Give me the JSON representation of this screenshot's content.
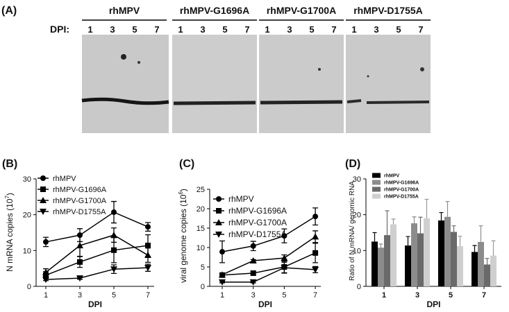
{
  "blot": {
    "label": "(A)",
    "dpi_label": "DPI:",
    "lanes": [
      {
        "name": "rhMPV",
        "days": [
          "1",
          "3",
          "5",
          "7"
        ]
      },
      {
        "name": "rhMPV-G1696A",
        "days": [
          "1",
          "3",
          "5",
          "7"
        ]
      },
      {
        "name": "rhMPV-G1700A",
        "days": [
          "1",
          "3",
          "5",
          "7"
        ]
      },
      {
        "name": "rhMPV-D1755A",
        "days": [
          "1",
          "3",
          "5",
          "7"
        ]
      }
    ]
  },
  "chart_data": [
    {
      "type": "line",
      "panel_label": "(B)",
      "ylabel": [
        "N mRNA copies (10",
        "7",
        ")"
      ],
      "xlabel": "DPI",
      "categories": [
        "1",
        "3",
        "5",
        "7"
      ],
      "ylim": [
        0,
        30
      ],
      "yticks": [
        0,
        10,
        20,
        30
      ],
      "series": [
        {
          "name": "rhMPV",
          "marker": "circle",
          "color": "#000000",
          "values": [
            12.4,
            14.3,
            20.7,
            16.6
          ],
          "errors": [
            1.3,
            1.8,
            3,
            1.2
          ]
        },
        {
          "name": "rhMPV-G1696A",
          "marker": "square",
          "color": "#000000",
          "values": [
            3.1,
            6.8,
            10.1,
            11.4
          ],
          "errors": [
            1,
            1.5,
            3.5,
            3
          ]
        },
        {
          "name": "rhMPV-G1700A",
          "marker": "triangle",
          "color": "#000000",
          "values": [
            3.9,
            11.4,
            14.3,
            8.7
          ],
          "errors": [
            1,
            3,
            2,
            2
          ]
        },
        {
          "name": "rhMPV-D1755A",
          "marker": "triangle-down",
          "color": "#000000",
          "values": [
            1.9,
            2.3,
            4.8,
            5.2
          ],
          "errors": [
            0.3,
            0.3,
            1.2,
            1
          ]
        }
      ]
    },
    {
      "type": "line",
      "panel_label": "(C)",
      "ylabel": [
        "viral genome copies (10",
        "6",
        ")"
      ],
      "xlabel": "DPI",
      "categories": [
        "1",
        "3",
        "5",
        "7"
      ],
      "ylim": [
        0,
        25
      ],
      "yticks": [
        0,
        5,
        10,
        15,
        20,
        25
      ],
      "series": [
        {
          "name": "rhMPV",
          "marker": "circle",
          "color": "#000000",
          "values": [
            8.9,
            10.4,
            13,
            18
          ],
          "errors": [
            2.8,
            1.2,
            1.8,
            2.2
          ]
        },
        {
          "name": "rhMPV-G1696A",
          "marker": "square",
          "color": "#000000",
          "values": [
            2.9,
            3.4,
            5,
            8.6
          ],
          "errors": [
            0.5,
            0.5,
            1.5,
            2.5
          ]
        },
        {
          "name": "rhMPV-G1700A",
          "marker": "triangle",
          "color": "#000000",
          "values": [
            3,
            6.6,
            7.3,
            12.8
          ],
          "errors": [
            0.3,
            0.3,
            0.8,
            1.5
          ]
        },
        {
          "name": "rhMPV-D1755A",
          "marker": "triangle-down",
          "color": "#000000",
          "values": [
            1.1,
            1.1,
            4.8,
            4.3
          ],
          "errors": [
            0.2,
            0.2,
            1.4,
            0.8
          ]
        }
      ]
    },
    {
      "type": "bar",
      "panel_label": "(D)",
      "ylabel": [
        "Ratio of N mRNA/ genomic RNA"
      ],
      "xlabel": "DPI",
      "categories": [
        "1",
        "3",
        "5",
        "7"
      ],
      "ylim": [
        0,
        30
      ],
      "yticks": [
        0,
        10,
        20,
        30
      ],
      "series": [
        {
          "name": "rhMPV",
          "color": "#000000",
          "values": [
            12.5,
            11.4,
            18.4,
            9.6
          ],
          "errors": [
            2.5,
            2.5,
            2.2,
            1.8
          ]
        },
        {
          "name": "rhMPV-G1696A",
          "color": "#8c8c8c",
          "values": [
            10.8,
            17.6,
            19.4,
            12.4
          ],
          "errors": [
            1,
            1.8,
            4.3,
            4.5
          ]
        },
        {
          "name": "rhMPV-G1700A",
          "color": "#6a6a6a",
          "values": [
            14.3,
            14.8,
            15.2,
            6.1
          ],
          "errors": [
            6.8,
            4.5,
            1.7,
            1.7
          ]
        },
        {
          "name": "rhMPV-D1755A",
          "color": "#cfcfcf",
          "values": [
            17.3,
            19,
            11.2,
            8.6
          ],
          "errors": [
            1.5,
            5.3,
            2.8,
            4.1
          ]
        }
      ]
    }
  ]
}
